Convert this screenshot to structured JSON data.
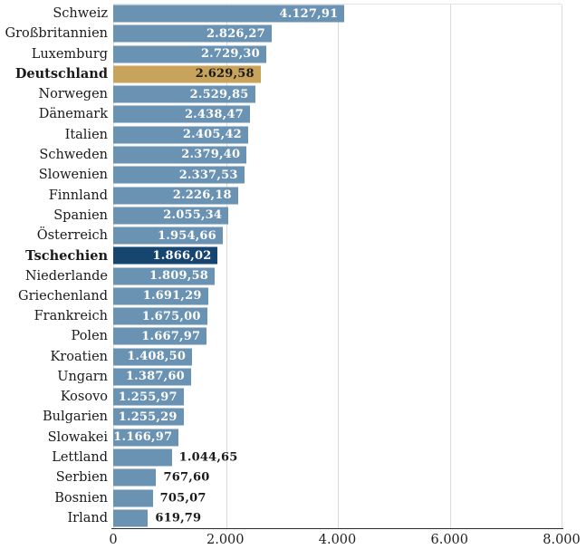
{
  "chart_data": {
    "type": "bar",
    "orientation": "horizontal",
    "title": "",
    "xlabel": "",
    "ylabel": "",
    "xlim": [
      0,
      8000
    ],
    "grid": true,
    "x_ticks": [
      {
        "label": "0",
        "pct": 0
      },
      {
        "label": "2.000",
        "pct": 25
      },
      {
        "label": "4.000",
        "pct": 50
      },
      {
        "label": "6.000",
        "pct": 75
      },
      {
        "label": "8.000",
        "pct": 100
      }
    ],
    "categories": [
      "Schweiz",
      "Großbritannien",
      "Luxemburg",
      "Deutschland",
      "Norwegen",
      "Dänemark",
      "Italien",
      "Schweden",
      "Slowenien",
      "Finnland",
      "Spanien",
      "Österreich",
      "Tschechien",
      "Niederlande",
      "Griechenland",
      "Frankreich",
      "Polen",
      "Kroatien",
      "Ungarn",
      "Kosovo",
      "Bulgarien",
      "Slowakei",
      "Lettland",
      "Serbien",
      "Bosnien",
      "Irland"
    ],
    "values": [
      4127.91,
      2826.27,
      2729.3,
      2629.58,
      2529.85,
      2438.47,
      2405.42,
      2379.4,
      2337.53,
      2226.18,
      2055.34,
      1954.66,
      1866.02,
      1809.58,
      1691.29,
      1675.0,
      1667.97,
      1408.5,
      1387.6,
      1255.97,
      1255.29,
      1166.97,
      1044.65,
      767.6,
      705.07,
      619.79
    ],
    "bars": [
      {
        "label": "Schweiz",
        "value": 4127.91,
        "display": "4.127,91",
        "color": "#6a92b2",
        "label_bold": false,
        "value_inside": true,
        "value_color": "#ffffff"
      },
      {
        "label": "Großbritannien",
        "value": 2826.27,
        "display": "2.826,27",
        "color": "#6a92b2",
        "label_bold": false,
        "value_inside": true,
        "value_color": "#ffffff"
      },
      {
        "label": "Luxemburg",
        "value": 2729.3,
        "display": "2.729,30",
        "color": "#6a92b2",
        "label_bold": false,
        "value_inside": true,
        "value_color": "#ffffff"
      },
      {
        "label": "Deutschland",
        "value": 2629.58,
        "display": "2.629,58",
        "color": "#c7a35c",
        "label_bold": true,
        "value_inside": true,
        "value_color": "#1a1a1a"
      },
      {
        "label": "Norwegen",
        "value": 2529.85,
        "display": "2.529,85",
        "color": "#6a92b2",
        "label_bold": false,
        "value_inside": true,
        "value_color": "#ffffff"
      },
      {
        "label": "Dänemark",
        "value": 2438.47,
        "display": "2.438,47",
        "color": "#6a92b2",
        "label_bold": false,
        "value_inside": true,
        "value_color": "#ffffff"
      },
      {
        "label": "Italien",
        "value": 2405.42,
        "display": "2.405,42",
        "color": "#6a92b2",
        "label_bold": false,
        "value_inside": true,
        "value_color": "#ffffff"
      },
      {
        "label": "Schweden",
        "value": 2379.4,
        "display": "2.379,40",
        "color": "#6a92b2",
        "label_bold": false,
        "value_inside": true,
        "value_color": "#ffffff"
      },
      {
        "label": "Slowenien",
        "value": 2337.53,
        "display": "2.337,53",
        "color": "#6a92b2",
        "label_bold": false,
        "value_inside": true,
        "value_color": "#ffffff"
      },
      {
        "label": "Finnland",
        "value": 2226.18,
        "display": "2.226,18",
        "color": "#6a92b2",
        "label_bold": false,
        "value_inside": true,
        "value_color": "#ffffff"
      },
      {
        "label": "Spanien",
        "value": 2055.34,
        "display": "2.055,34",
        "color": "#6a92b2",
        "label_bold": false,
        "value_inside": true,
        "value_color": "#ffffff"
      },
      {
        "label": "Österreich",
        "value": 1954.66,
        "display": "1.954,66",
        "color": "#6a92b2",
        "label_bold": false,
        "value_inside": true,
        "value_color": "#ffffff"
      },
      {
        "label": "Tschechien",
        "value": 1866.02,
        "display": "1.866,02",
        "color": "#16466f",
        "label_bold": true,
        "value_inside": true,
        "value_color": "#ffffff"
      },
      {
        "label": "Niederlande",
        "value": 1809.58,
        "display": "1.809,58",
        "color": "#6a92b2",
        "label_bold": false,
        "value_inside": true,
        "value_color": "#ffffff"
      },
      {
        "label": "Griechenland",
        "value": 1691.29,
        "display": "1.691,29",
        "color": "#6a92b2",
        "label_bold": false,
        "value_inside": true,
        "value_color": "#ffffff"
      },
      {
        "label": "Frankreich",
        "value": 1675.0,
        "display": "1.675,00",
        "color": "#6a92b2",
        "label_bold": false,
        "value_inside": true,
        "value_color": "#ffffff"
      },
      {
        "label": "Polen",
        "value": 1667.97,
        "display": "1.667,97",
        "color": "#6a92b2",
        "label_bold": false,
        "value_inside": true,
        "value_color": "#ffffff"
      },
      {
        "label": "Kroatien",
        "value": 1408.5,
        "display": "1.408,50",
        "color": "#6a92b2",
        "label_bold": false,
        "value_inside": true,
        "value_color": "#ffffff"
      },
      {
        "label": "Ungarn",
        "value": 1387.6,
        "display": "1.387,60",
        "color": "#6a92b2",
        "label_bold": false,
        "value_inside": true,
        "value_color": "#ffffff"
      },
      {
        "label": "Kosovo",
        "value": 1255.97,
        "display": "1.255,97",
        "color": "#6a92b2",
        "label_bold": false,
        "value_inside": true,
        "value_color": "#ffffff"
      },
      {
        "label": "Bulgarien",
        "value": 1255.29,
        "display": "1.255,29",
        "color": "#6a92b2",
        "label_bold": false,
        "value_inside": true,
        "value_color": "#ffffff"
      },
      {
        "label": "Slowakei",
        "value": 1166.97,
        "display": "1.166,97",
        "color": "#6a92b2",
        "label_bold": false,
        "value_inside": true,
        "value_color": "#ffffff"
      },
      {
        "label": "Lettland",
        "value": 1044.65,
        "display": "1.044,65",
        "color": "#6a92b2",
        "label_bold": false,
        "value_inside": false,
        "value_color": "#1a1a1a"
      },
      {
        "label": "Serbien",
        "value": 767.6,
        "display": "767,60",
        "color": "#6a92b2",
        "label_bold": false,
        "value_inside": false,
        "value_color": "#1a1a1a"
      },
      {
        "label": "Bosnien",
        "value": 705.07,
        "display": "705,07",
        "color": "#6a92b2",
        "label_bold": false,
        "value_inside": false,
        "value_color": "#1a1a1a"
      },
      {
        "label": "Irland",
        "value": 619.79,
        "display": "619,79",
        "color": "#6a92b2",
        "label_bold": false,
        "value_inside": false,
        "value_color": "#1a1a1a"
      }
    ],
    "colors": {
      "bar_default": "#6a92b2",
      "bar_highlight_gold": "#c7a35c",
      "bar_highlight_navy": "#16466f",
      "gridline": "#d9d9d9",
      "axis_line": "#2b2b2b",
      "label_text": "#1a1a1a",
      "value_text_inside": "#ffffff"
    },
    "legend": null
  }
}
